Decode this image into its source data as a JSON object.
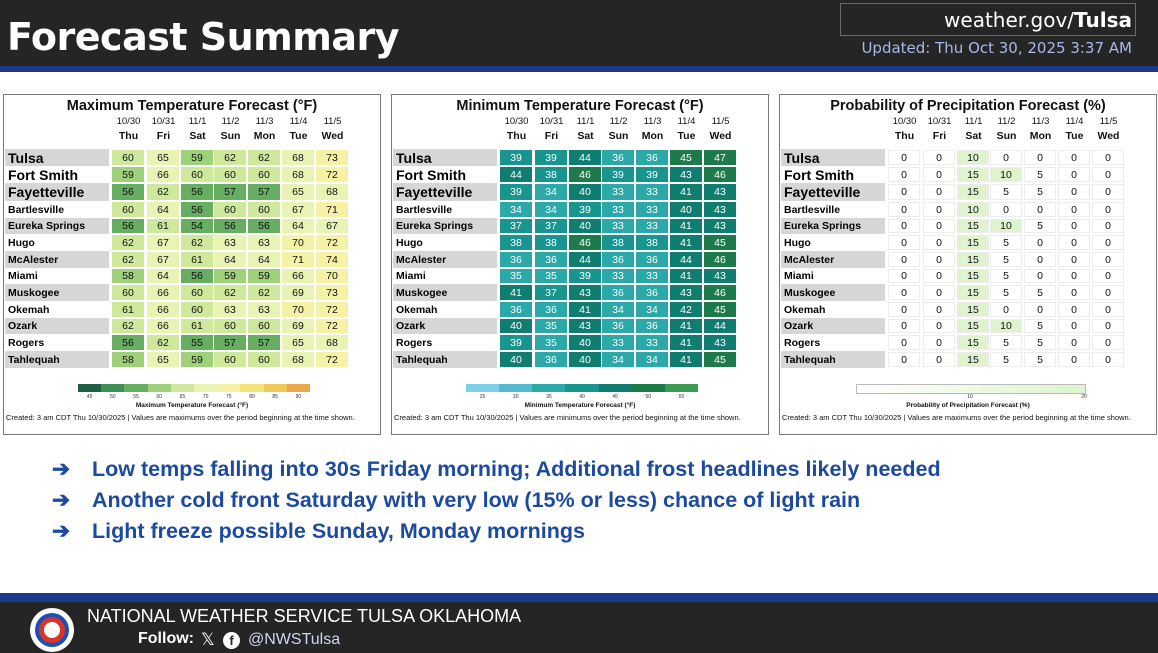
{
  "header": {
    "title": "Forecast Summary",
    "site_prefix": "weather.gov/",
    "site_office": "Tulsa",
    "updated": "Updated: Thu Oct 30, 2025 3:37 AM"
  },
  "dates": [
    "10/30",
    "10/31",
    "11/1",
    "11/2",
    "11/3",
    "11/4",
    "11/5"
  ],
  "days": [
    "Thu",
    "Fri",
    "Sat",
    "Sun",
    "Mon",
    "Tue",
    "Wed"
  ],
  "cities": [
    "Tulsa",
    "Fort Smith",
    "Fayetteville",
    "Bartlesville",
    "Eureka Springs",
    "Hugo",
    "McAlester",
    "Miami",
    "Muskogee",
    "Okemah",
    "Ozark",
    "Rogers",
    "Tahlequah"
  ],
  "panels": [
    {
      "title": "Maximum Temperature Forecast (°F)",
      "values": [
        [
          60,
          65,
          59,
          62,
          62,
          68,
          73
        ],
        [
          59,
          66,
          60,
          60,
          60,
          68,
          72
        ],
        [
          56,
          62,
          56,
          57,
          57,
          65,
          68
        ],
        [
          60,
          64,
          56,
          60,
          60,
          67,
          71
        ],
        [
          56,
          61,
          54,
          56,
          56,
          64,
          67
        ],
        [
          62,
          67,
          62,
          63,
          63,
          70,
          72
        ],
        [
          62,
          67,
          61,
          64,
          64,
          71,
          74
        ],
        [
          58,
          64,
          56,
          59,
          59,
          66,
          70
        ],
        [
          60,
          66,
          60,
          62,
          62,
          69,
          73
        ],
        [
          61,
          66,
          60,
          63,
          63,
          70,
          72
        ],
        [
          62,
          66,
          61,
          60,
          60,
          69,
          72
        ],
        [
          56,
          62,
          55,
          57,
          57,
          65,
          68
        ],
        [
          58,
          65,
          59,
          60,
          60,
          68,
          72
        ]
      ],
      "legend_title": "Maximum Temperature Forecast (°F)",
      "legend_ticks": [
        "45",
        "50",
        "55",
        "60",
        "65",
        "70",
        "75",
        "80",
        "85",
        "90"
      ],
      "footnote": "Created: 3 am CDT Thu 10/30/2025  |  Values are maximums over the period beginning at the time shown."
    },
    {
      "title": "Minimum Temperature Forecast (°F)",
      "values": [
        [
          39,
          39,
          44,
          36,
          36,
          45,
          47
        ],
        [
          44,
          38,
          46,
          39,
          39,
          43,
          46
        ],
        [
          39,
          34,
          40,
          33,
          33,
          41,
          43
        ],
        [
          34,
          34,
          39,
          33,
          33,
          40,
          43
        ],
        [
          37,
          37,
          40,
          33,
          33,
          41,
          43
        ],
        [
          38,
          38,
          46,
          38,
          38,
          41,
          45
        ],
        [
          36,
          36,
          44,
          36,
          36,
          44,
          46
        ],
        [
          35,
          35,
          39,
          33,
          33,
          41,
          43
        ],
        [
          41,
          37,
          43,
          36,
          36,
          43,
          46
        ],
        [
          36,
          36,
          41,
          34,
          34,
          42,
          45
        ],
        [
          40,
          35,
          43,
          36,
          36,
          41,
          44
        ],
        [
          39,
          35,
          40,
          33,
          33,
          41,
          43
        ],
        [
          40,
          36,
          40,
          34,
          34,
          41,
          45
        ]
      ],
      "legend_title": "Minimum Temperature Forecast (°F)",
      "legend_ticks": [
        "25",
        "30",
        "35",
        "40",
        "45",
        "50",
        "55"
      ],
      "footnote": "Created: 3 am CDT Thu 10/30/2025  |  Values are minimums over the period beginning at the time shown."
    },
    {
      "title": "Probability of Precipitation Forecast (%)",
      "values": [
        [
          0,
          0,
          10,
          0,
          0,
          0,
          0
        ],
        [
          0,
          0,
          15,
          10,
          5,
          0,
          0
        ],
        [
          0,
          0,
          15,
          5,
          5,
          0,
          0
        ],
        [
          0,
          0,
          10,
          0,
          0,
          0,
          0
        ],
        [
          0,
          0,
          15,
          10,
          5,
          0,
          0
        ],
        [
          0,
          0,
          15,
          5,
          0,
          0,
          0
        ],
        [
          0,
          0,
          15,
          5,
          0,
          0,
          0
        ],
        [
          0,
          0,
          15,
          5,
          0,
          0,
          0
        ],
        [
          0,
          0,
          15,
          5,
          5,
          0,
          0
        ],
        [
          0,
          0,
          15,
          0,
          0,
          0,
          0
        ],
        [
          0,
          0,
          15,
          10,
          5,
          0,
          0
        ],
        [
          0,
          0,
          15,
          5,
          5,
          0,
          0
        ],
        [
          0,
          0,
          15,
          5,
          5,
          0,
          0
        ]
      ],
      "legend_title": "Probability of Precipitation Forecast (%)",
      "legend_ticks": [
        "10",
        "20"
      ],
      "footnote": "Created: 3 am CDT Thu 10/30/2025  |  Values are maximums over the period beginning at the time shown."
    }
  ],
  "bullets": [
    "Low temps falling into 30s Friday morning; Additional frost headlines likely needed",
    "Another cold front Saturday with very low (15% or less) chance of light rain",
    "Light freeze possible Sunday, Monday mornings"
  ],
  "bullet_arrow": "➔",
  "footer": {
    "office": "NATIONAL WEATHER SERVICE TULSA OKLAHOMA",
    "follow": "Follow:",
    "x_glyph": "𝕏",
    "fb_glyph": "f",
    "handle": "@NWSTulsa"
  },
  "colors": {
    "header_bg": "#252525",
    "stripe": "#1b3b8a",
    "bullet_text": "#1c4aa0",
    "maxt_scale": [
      "#1f5e45",
      "#3f8f56",
      "#67ad62",
      "#9fd17a",
      "#cfe99c",
      "#e9f4b4",
      "#f5f2a5",
      "#f3e17a",
      "#efc75a",
      "#e8a94a"
    ],
    "mint_scale": [
      "#7fd0e6",
      "#55b9cf",
      "#2ba8a8",
      "#17958e",
      "#0f7e70",
      "#1d7a4b",
      "#3e9b56"
    ],
    "pop_scale": [
      "#ffffff",
      "#dff3cf"
    ]
  }
}
